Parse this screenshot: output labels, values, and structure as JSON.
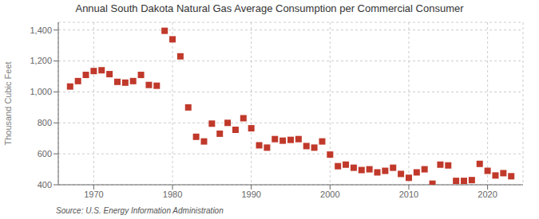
{
  "chart_data": {
    "type": "scatter",
    "title": "Annual South Dakota Natural Gas Average Consumption per Commercial Consumer",
    "y_label": "Thousand Cubic Feet",
    "annotations": [
      {
        "text": "Source: U.S. Energy Information Administration"
      }
    ],
    "x": [
      1967,
      1968,
      1969,
      1970,
      1971,
      1972,
      1973,
      1974,
      1975,
      1976,
      1977,
      1978,
      1979,
      1980,
      1981,
      1982,
      1983,
      1984,
      1985,
      1986,
      1987,
      1988,
      1989,
      1990,
      1991,
      1992,
      1993,
      1994,
      1995,
      1996,
      1997,
      1998,
      1999,
      2000,
      2001,
      2002,
      2003,
      2004,
      2005,
      2006,
      2007,
      2008,
      2009,
      2010,
      2011,
      2012,
      2013,
      2014,
      2015,
      2016,
      2017,
      2018,
      2019,
      2020,
      2021,
      2022,
      2023
    ],
    "values": [
      1035,
      1070,
      1110,
      1135,
      1140,
      1115,
      1065,
      1060,
      1070,
      1110,
      1045,
      1040,
      1395,
      1340,
      1230,
      900,
      710,
      680,
      795,
      730,
      800,
      755,
      830,
      765,
      655,
      640,
      695,
      685,
      690,
      695,
      650,
      640,
      680,
      595,
      520,
      530,
      510,
      495,
      500,
      480,
      490,
      510,
      470,
      445,
      480,
      500,
      407,
      530,
      525,
      425,
      425,
      430,
      535,
      490,
      460,
      475,
      455
    ],
    "color": "#c0392b",
    "marker": "square",
    "xlim": [
      1965.5,
      2024.5
    ],
    "xticks": [
      1970,
      1980,
      1990,
      2000,
      2010,
      2020
    ],
    "ylim": [
      400,
      1450
    ],
    "yticks": [
      400,
      600,
      800,
      {
        "value": 1000,
        "label": "1,000"
      },
      {
        "value": 1200,
        "label": "1,200"
      },
      {
        "value": 1400,
        "label": "1,400"
      }
    ],
    "grid": true
  }
}
